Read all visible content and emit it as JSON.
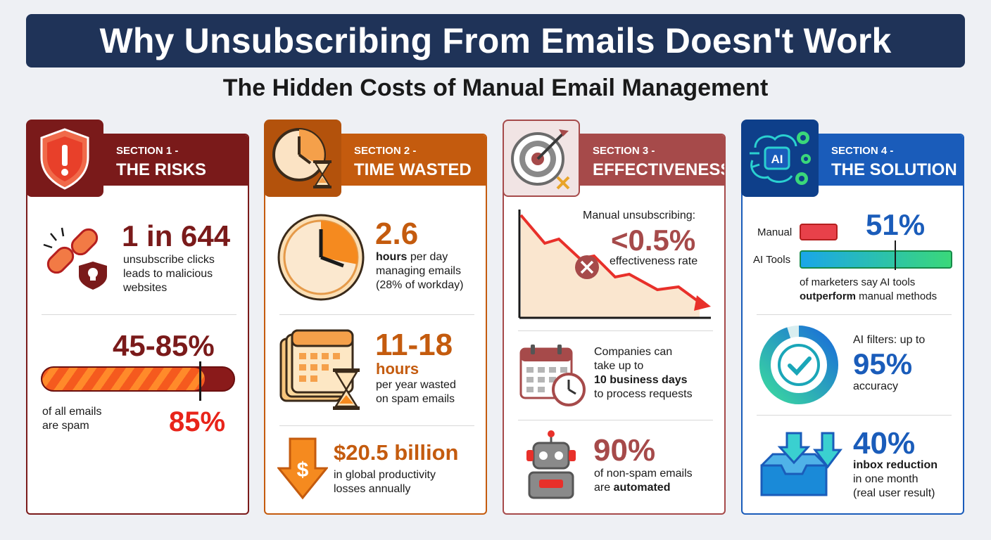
{
  "title": "Why Unsubscribing From Emails Doesn't Work",
  "subtitle": "The Hidden Costs of Manual Email Management",
  "colors": {
    "banner": "#1f3358",
    "risks": "#7a1a1a",
    "time": "#c45b0e",
    "effect": "#a64a4a",
    "solution": "#1a5cba"
  },
  "s1": {
    "section": "SECTION 1 -",
    "title": "THE RISKS",
    "stat1": "1 in 644",
    "stat1_text": [
      "unsubscribe clicks",
      "leads to malicious",
      "websites"
    ],
    "stat2": "45-85%",
    "bar_fill_fraction": 0.85,
    "stat2_text": [
      "of all emails",
      "are spam"
    ],
    "stat2_marker": "85%"
  },
  "s2": {
    "section": "SECTION 2 -",
    "title": "TIME WASTED",
    "stat1": "2.6",
    "stat1_bold": "hours",
    "stat1_rest": " per day",
    "stat1_text": [
      "managing emails",
      "(28% of workday)"
    ],
    "clock_fraction": 0.28,
    "stat2": "11-18",
    "stat2_unit": "hours",
    "stat2_text": [
      "per year wasted",
      "on spam emails"
    ],
    "stat3": "$20.5 billion",
    "stat3_text": [
      "in global productivity",
      "losses annually"
    ]
  },
  "s3": {
    "section": "SECTION 3 -",
    "title": "EFFECTIVENESS",
    "label": "Manual unsubscribing:",
    "stat1": "<0.5%",
    "stat1_text": "effectiveness rate",
    "stat2_text1": "Companies can",
    "stat2_text2": "take up to",
    "stat2_bold": "10 business days",
    "stat2_text3": "to process requests",
    "stat3": "90%",
    "stat3_text1": "of non-spam emails",
    "stat3_text2": "are ",
    "stat3_bold": "automated"
  },
  "s4": {
    "section": "SECTION 4 -",
    "title": "THE SOLUTION",
    "icon_text": "AI",
    "bar_labels": [
      "Manual",
      "AI Tools"
    ],
    "stat1": "51%",
    "stat1_text1": "of marketers say AI tools",
    "stat1_bold": "outperform",
    "stat1_text2": " manual methods",
    "stat2_label": "AI filters: up to",
    "stat2": "95%",
    "stat2_text": "accuracy",
    "ring_fraction": 0.95,
    "stat3": "40%",
    "stat3_bold": "inbox reduction",
    "stat3_text": [
      "in one month",
      "(real user result)"
    ]
  }
}
